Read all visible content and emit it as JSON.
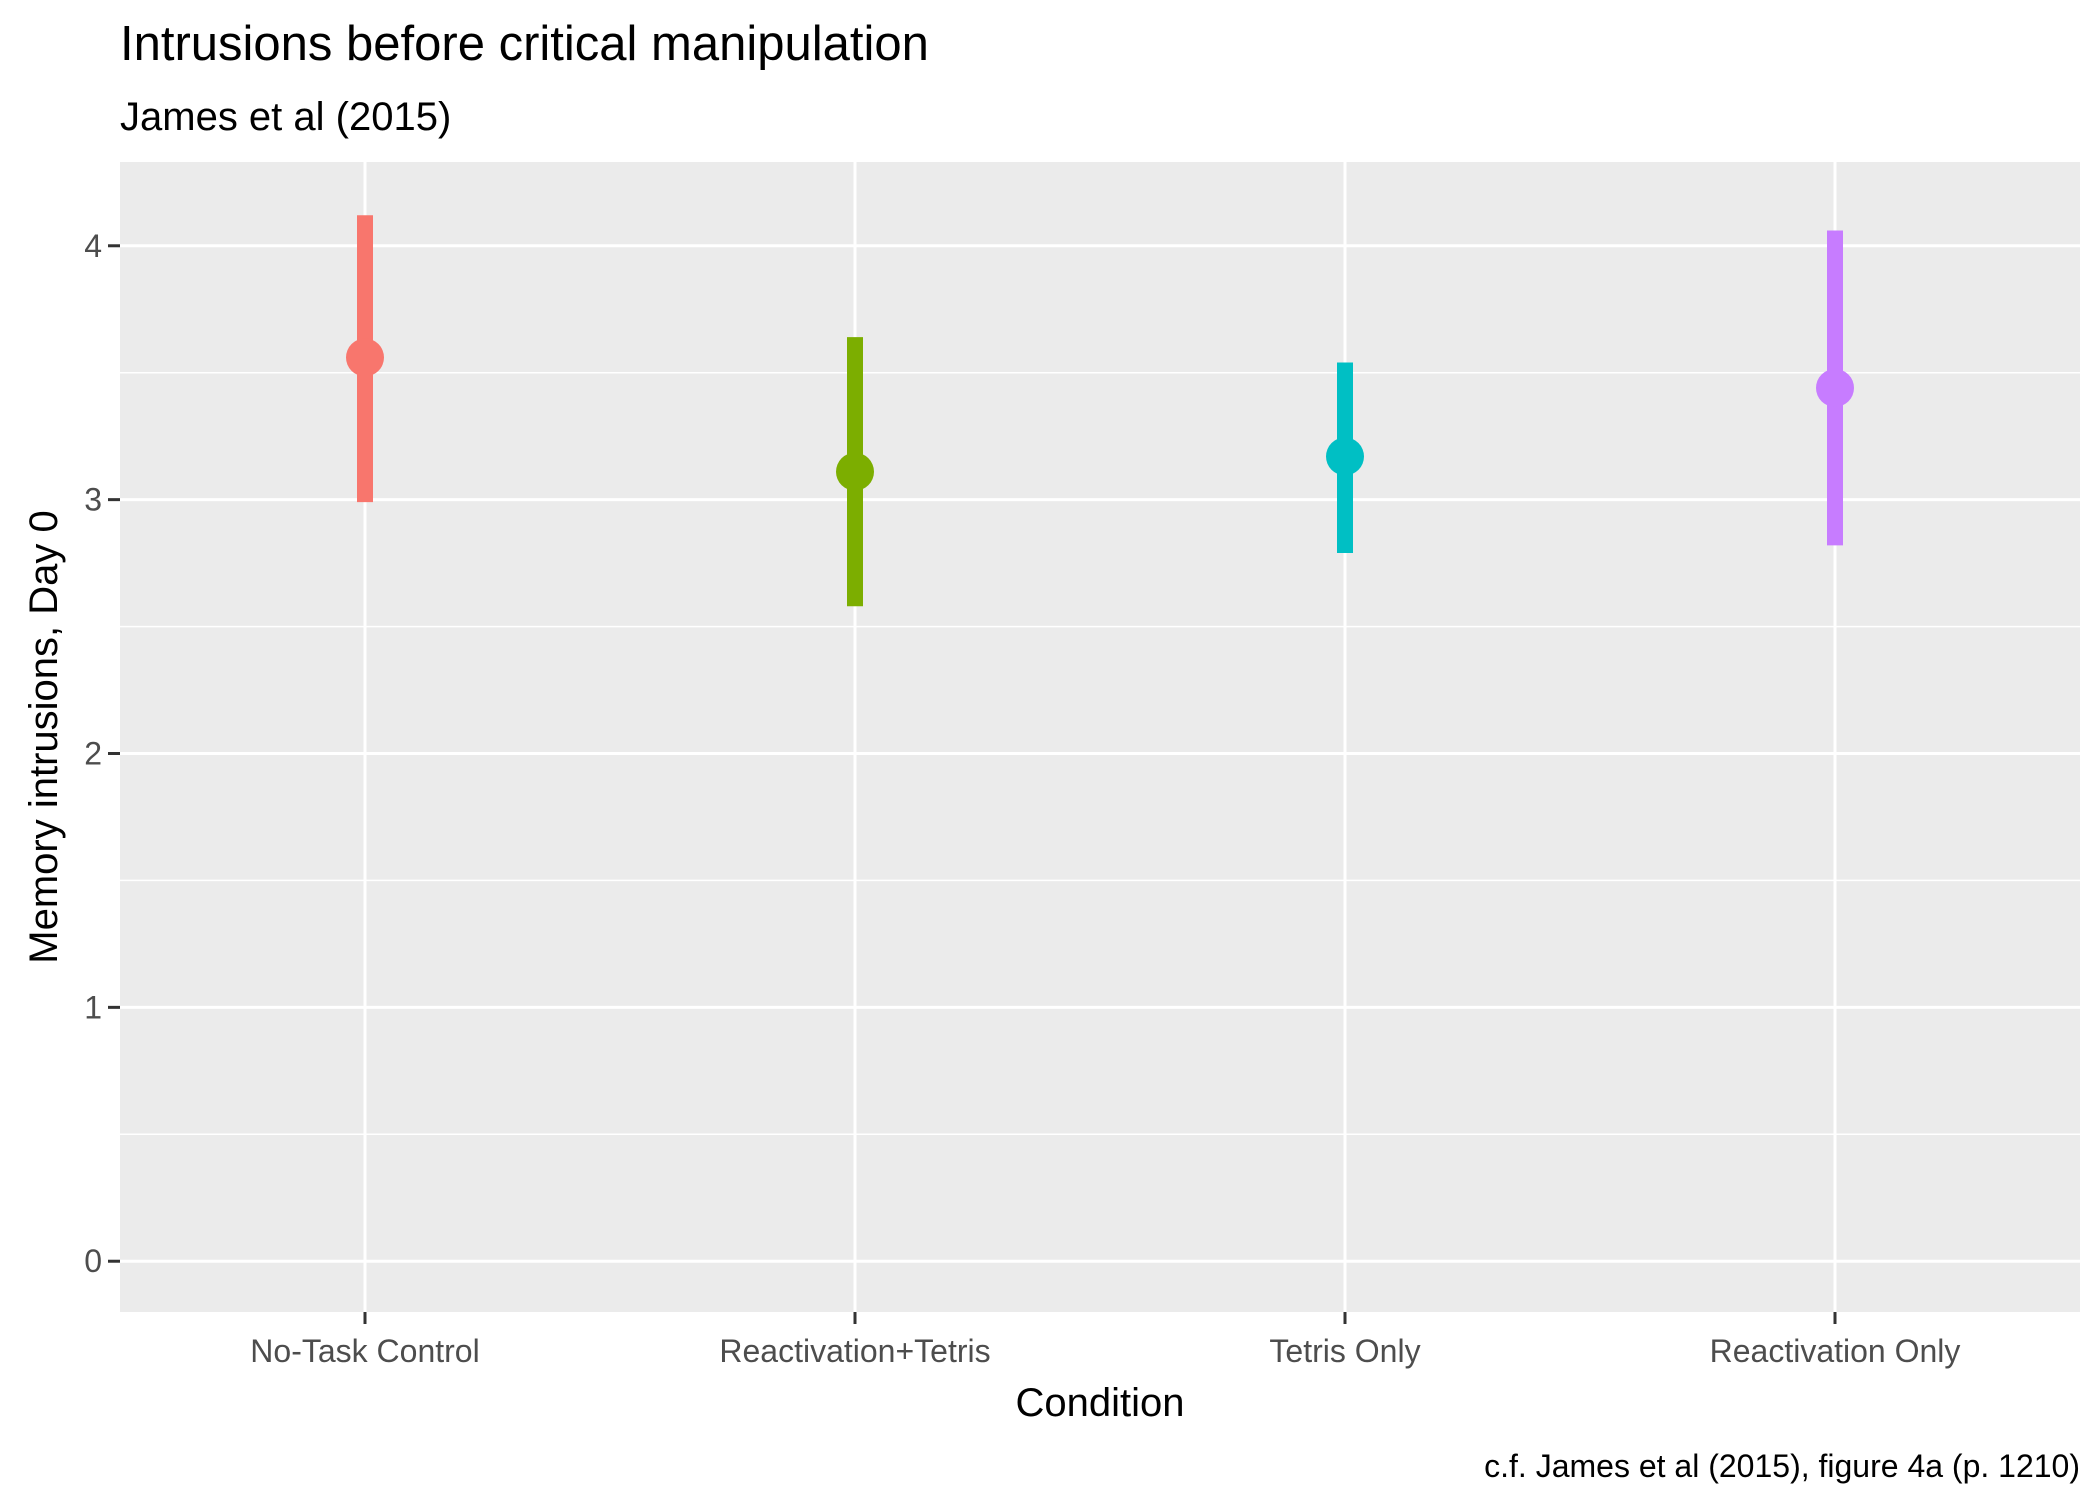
{
  "chart_data": {
    "type": "scatter",
    "title": "Intrusions before critical manipulation",
    "subtitle": "James et al (2015)",
    "xlabel": "Condition",
    "ylabel": "Memory intrusions, Day 0",
    "caption": "c.f. James et al (2015), figure 4a (p. 1210)",
    "categories": [
      "No-Task Control",
      "Reactivation+Tetris",
      "Tetris Only",
      "Reactivation Only"
    ],
    "points": [
      {
        "category": "No-Task Control",
        "mean": 3.56,
        "lower": 2.99,
        "upper": 4.12,
        "color": "#F8766D"
      },
      {
        "category": "Reactivation+Tetris",
        "mean": 3.11,
        "lower": 2.58,
        "upper": 3.64,
        "color": "#7CAE00"
      },
      {
        "category": "Tetris Only",
        "mean": 3.17,
        "lower": 2.79,
        "upper": 3.54,
        "color": "#00BFC4"
      },
      {
        "category": "Reactivation Only",
        "mean": 3.44,
        "lower": 2.82,
        "upper": 4.06,
        "color": "#C77CFF"
      }
    ],
    "yticks": [
      "0",
      "1",
      "2",
      "3",
      "4"
    ],
    "ylim": [
      -0.2,
      4.33
    ],
    "grid": true,
    "legend": "none",
    "panel_background": "#EBEBEB",
    "grid_color": "#FFFFFF"
  }
}
